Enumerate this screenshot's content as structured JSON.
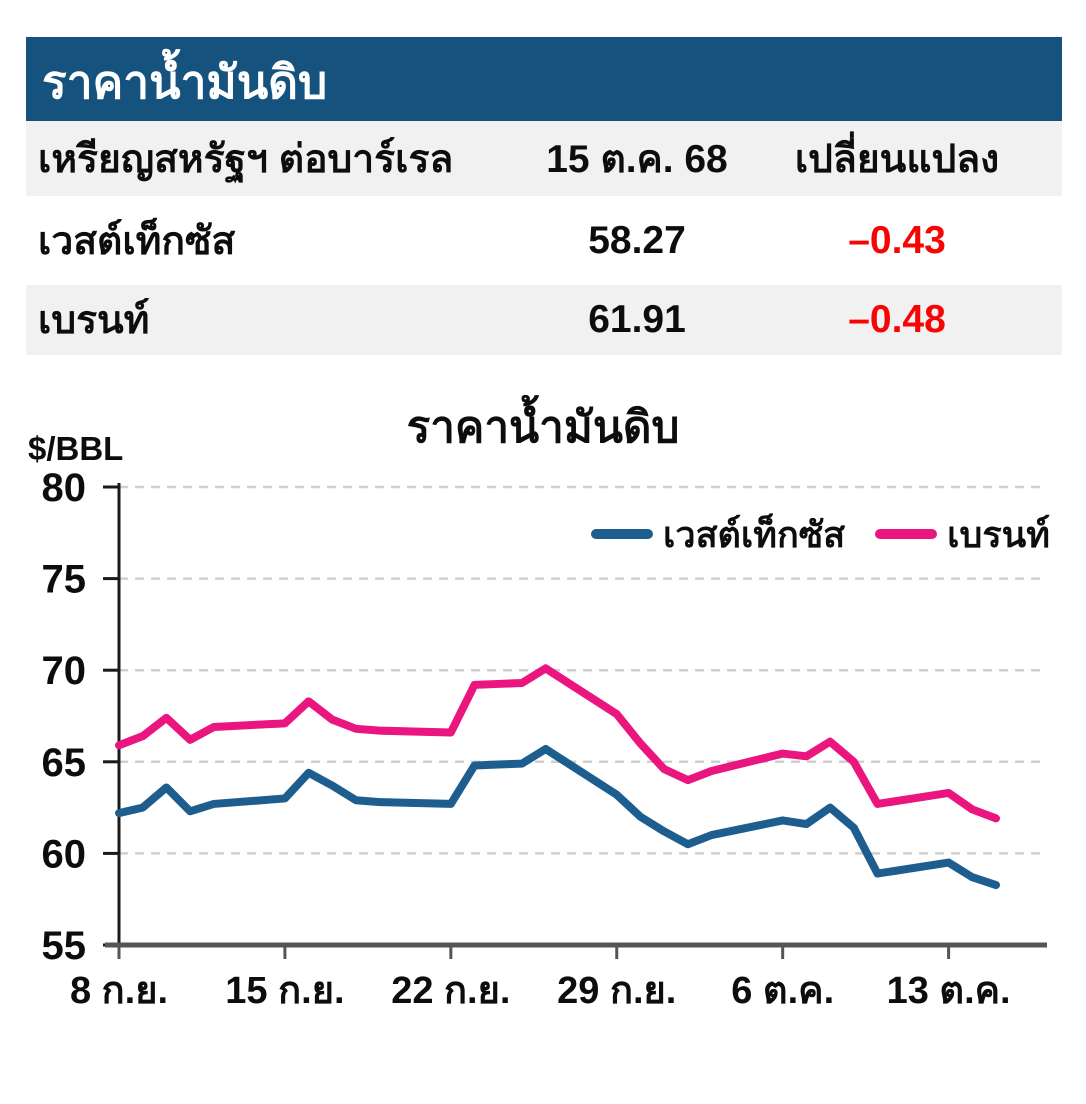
{
  "table": {
    "title": "ราคาน้ำมันดิบ",
    "header_row": {
      "unit_label": "เหรียญสหรัฐฯ ต่อบาร์เรล",
      "date": "15 ต.ค. 68",
      "change_label": "เปลี่ยนแปลง"
    },
    "rows": [
      {
        "name": "เวสต์เท็กซัส",
        "price": "58.27",
        "change": "–0.43"
      },
      {
        "name": "เบรนท์",
        "price": "61.91",
        "change": "–0.48"
      }
    ],
    "colors": {
      "header_bar": "#15537E",
      "row_stripe": "#F1F1F1",
      "negative_text": "#F70505"
    }
  },
  "chart_data": {
    "type": "line",
    "title": "ราคาน้ำมันดิบ",
    "ylabel": "$/BBL",
    "ylim": [
      55,
      80
    ],
    "yticks": [
      80,
      75,
      70,
      65,
      60,
      55
    ],
    "grid": "horizontal-dashed",
    "grid_color": "#cfcfcf",
    "axis_color": "#555555",
    "legend_position": "top-right-inside",
    "x_axis_span_days": 37,
    "x_day_offsets": [
      0,
      1,
      2,
      3,
      4,
      7,
      8,
      9,
      10,
      11,
      14,
      15,
      16,
      17,
      18,
      21,
      22,
      23,
      24,
      25,
      28,
      29,
      30,
      31,
      32,
      35,
      36,
      37
    ],
    "xticks": [
      {
        "label": "8 ก.ย.",
        "day": 0
      },
      {
        "label": "15 ก.ย.",
        "day": 7
      },
      {
        "label": "22 ก.ย.",
        "day": 14
      },
      {
        "label": "29 ก.ย.",
        "day": 21
      },
      {
        "label": "6 ต.ค.",
        "day": 28
      },
      {
        "label": "13 ต.ค.",
        "day": 35
      }
    ],
    "series": [
      {
        "name": "เวสต์เท็กซัส",
        "color": "#1E5E8E",
        "values": [
          62.2,
          62.5,
          63.6,
          62.3,
          62.7,
          63.0,
          64.4,
          63.7,
          62.9,
          62.8,
          62.7,
          64.8,
          64.85,
          64.9,
          65.7,
          63.2,
          62.0,
          61.2,
          60.5,
          61.0,
          61.8,
          61.6,
          62.5,
          61.4,
          58.9,
          59.5,
          58.7,
          58.27
        ]
      },
      {
        "name": "เบรนท์",
        "color": "#EA157E",
        "values": [
          65.9,
          66.4,
          67.4,
          66.2,
          66.9,
          67.1,
          68.3,
          67.3,
          66.8,
          66.7,
          66.6,
          69.2,
          69.25,
          69.3,
          70.1,
          67.6,
          66.0,
          64.6,
          64.0,
          64.5,
          65.45,
          65.3,
          66.1,
          65.0,
          62.7,
          63.3,
          62.4,
          61.91
        ]
      }
    ]
  }
}
